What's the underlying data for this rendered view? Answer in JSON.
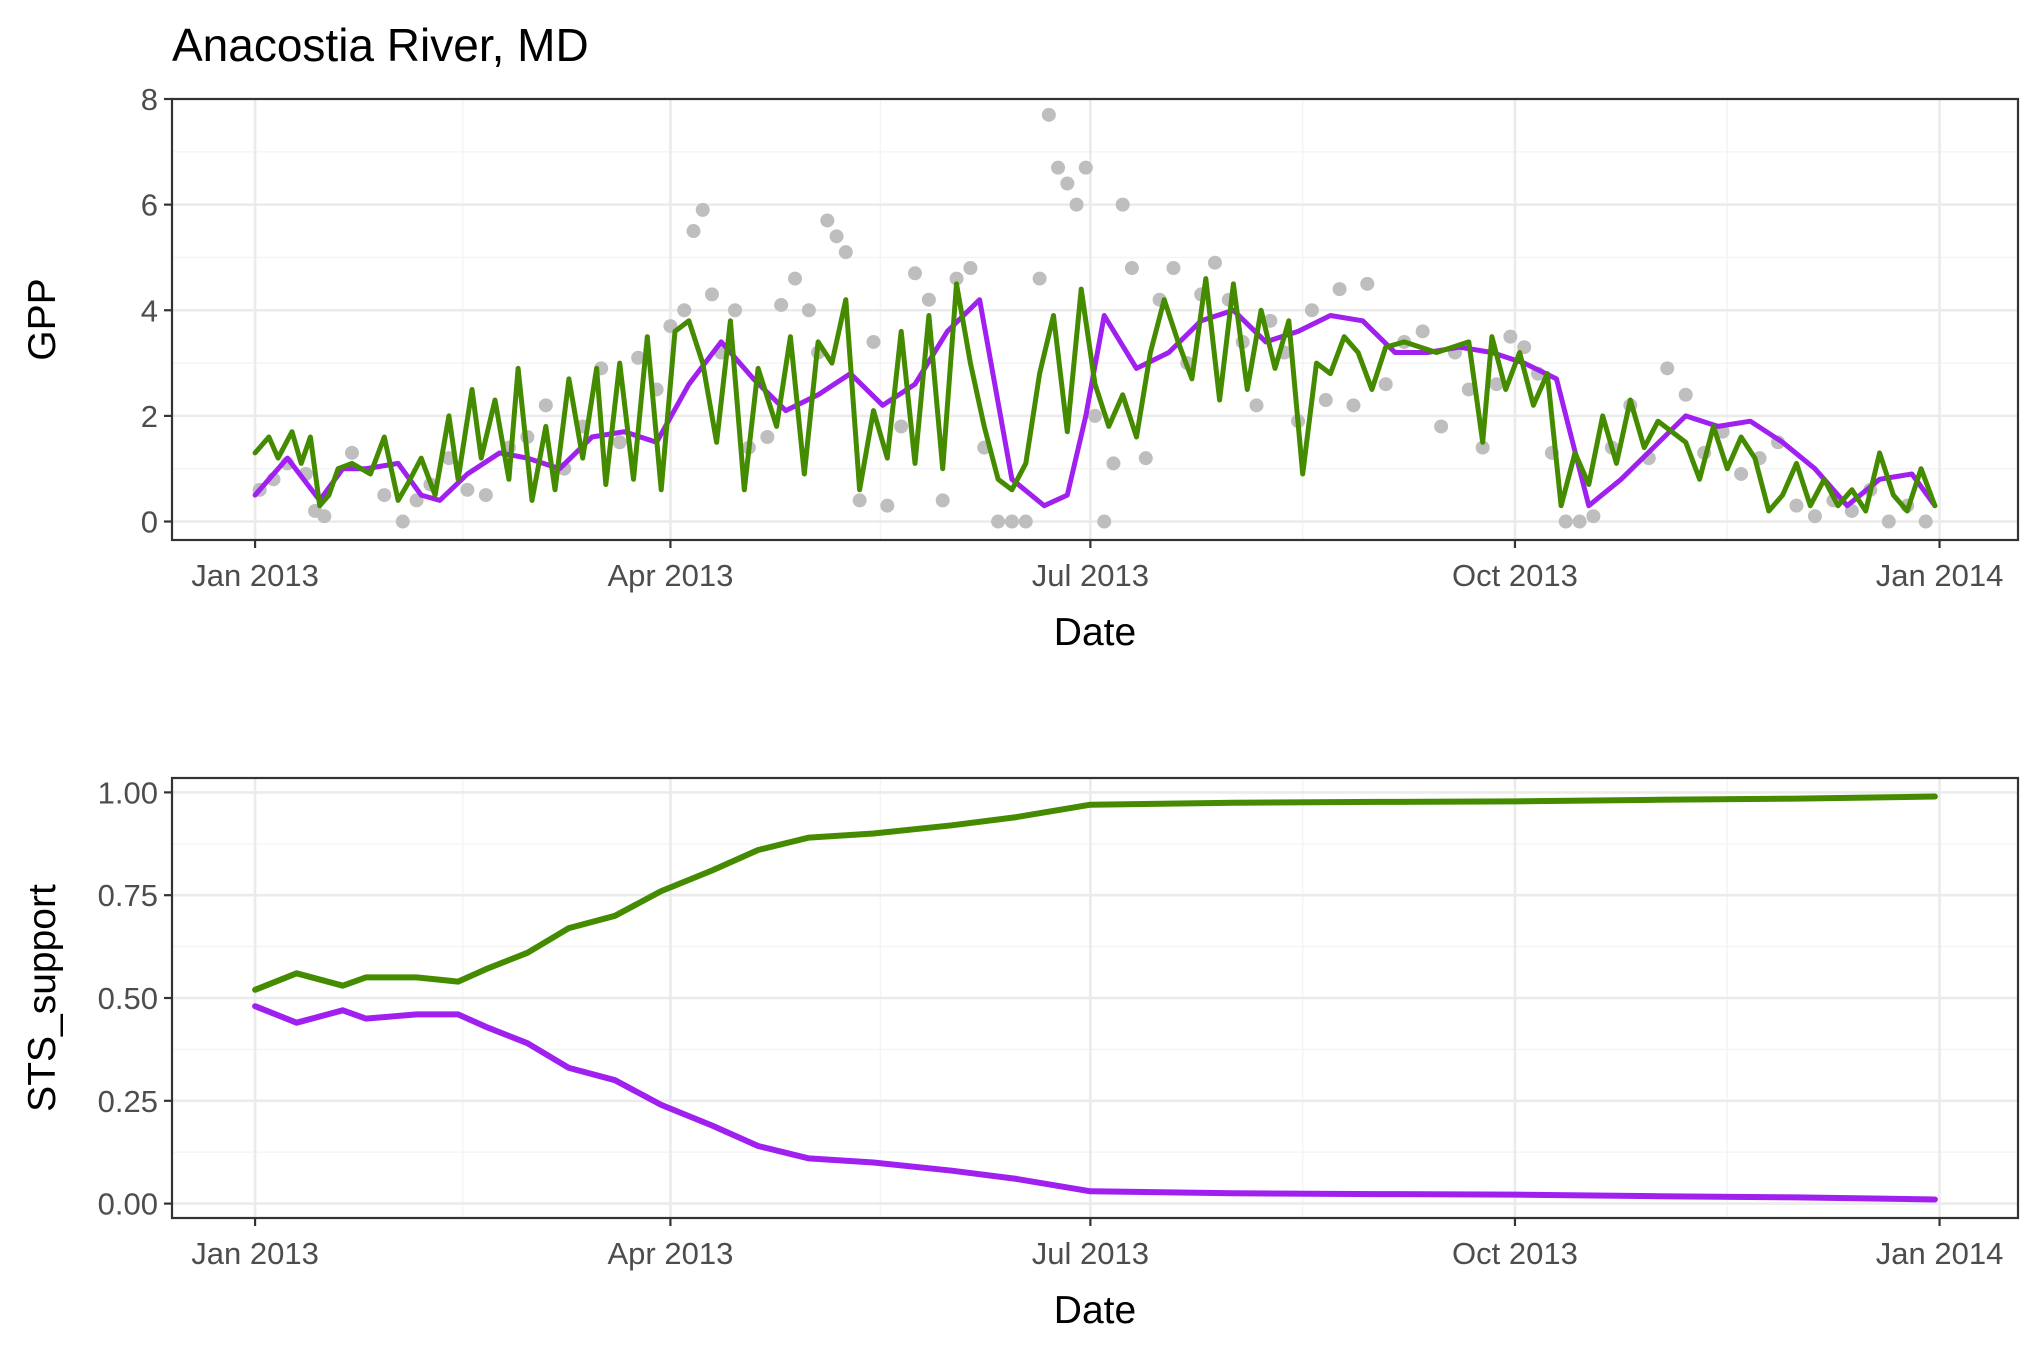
{
  "title": "Anacostia River, MD",
  "colors": {
    "series_a": "#A020F0",
    "series_b": "#458B00",
    "observed": "#BEBEBE"
  },
  "chart_data": [
    {
      "type": "line",
      "panel": "top",
      "ylabel": "GPP",
      "xlabel": "Date",
      "xlim": [
        "2012-12-14",
        "2014-01-18"
      ],
      "ylim": [
        -0.35,
        8.0
      ],
      "y_ticks": [
        0,
        2,
        4,
        6,
        8
      ],
      "y_tick_labels": [
        "0",
        "2",
        "4",
        "6",
        "8"
      ],
      "x_ticks": [
        "2013-01-01",
        "2013-04-01",
        "2013-07-01",
        "2013-10-01",
        "2014-01-01"
      ],
      "x_tick_labels": [
        "Jan 2013",
        "Apr 2013",
        "Jul 2013",
        "Oct 2013",
        "Jan 2014"
      ],
      "grid": true,
      "legend": "none",
      "points": {
        "color": "#BEBEBE",
        "dates": [
          "2013-01-02",
          "2013-01-05",
          "2013-01-08",
          "2013-01-12",
          "2013-01-14",
          "2013-01-16",
          "2013-01-22",
          "2013-01-29",
          "2013-02-02",
          "2013-02-05",
          "2013-02-08",
          "2013-02-12",
          "2013-02-16",
          "2013-02-20",
          "2013-02-25",
          "2013-03-01",
          "2013-03-05",
          "2013-03-09",
          "2013-03-13",
          "2013-03-17",
          "2013-03-21",
          "2013-03-25",
          "2013-03-29",
          "2013-04-01",
          "2013-04-04",
          "2013-04-06",
          "2013-04-08",
          "2013-04-10",
          "2013-04-12",
          "2013-04-15",
          "2013-04-18",
          "2013-04-22",
          "2013-04-25",
          "2013-04-28",
          "2013-05-01",
          "2013-05-03",
          "2013-05-05",
          "2013-05-07",
          "2013-05-09",
          "2013-05-12",
          "2013-05-15",
          "2013-05-18",
          "2013-05-21",
          "2013-05-24",
          "2013-05-27",
          "2013-05-30",
          "2013-06-02",
          "2013-06-05",
          "2013-06-08",
          "2013-06-11",
          "2013-06-14",
          "2013-06-17",
          "2013-06-20",
          "2013-06-22",
          "2013-06-24",
          "2013-06-26",
          "2013-06-28",
          "2013-06-30",
          "2013-07-02",
          "2013-07-04",
          "2013-07-06",
          "2013-07-08",
          "2013-07-10",
          "2013-07-13",
          "2013-07-16",
          "2013-07-19",
          "2013-07-22",
          "2013-07-25",
          "2013-07-28",
          "2013-07-31",
          "2013-08-03",
          "2013-08-06",
          "2013-08-09",
          "2013-08-12",
          "2013-08-15",
          "2013-08-18",
          "2013-08-21",
          "2013-08-24",
          "2013-08-27",
          "2013-08-30",
          "2013-09-03",
          "2013-09-07",
          "2013-09-11",
          "2013-09-15",
          "2013-09-18",
          "2013-09-21",
          "2013-09-24",
          "2013-09-27",
          "2013-09-30",
          "2013-10-03",
          "2013-10-06",
          "2013-10-09",
          "2013-10-12",
          "2013-10-15",
          "2013-10-18",
          "2013-10-22",
          "2013-10-26",
          "2013-10-30",
          "2013-11-03",
          "2013-11-07",
          "2013-11-11",
          "2013-11-15",
          "2013-11-19",
          "2013-11-23",
          "2013-11-27",
          "2013-12-01",
          "2013-12-05",
          "2013-12-09",
          "2013-12-13",
          "2013-12-17",
          "2013-12-21",
          "2013-12-25",
          "2013-12-29"
        ],
        "values": [
          0.6,
          0.8,
          1.1,
          0.9,
          0.2,
          0.1,
          1.3,
          0.5,
          0.0,
          0.4,
          0.7,
          1.2,
          0.6,
          0.5,
          1.4,
          1.6,
          2.2,
          1.0,
          1.8,
          2.9,
          1.5,
          3.1,
          2.5,
          3.7,
          4.0,
          5.5,
          5.9,
          4.3,
          3.2,
          4.0,
          1.4,
          1.6,
          4.1,
          4.6,
          4.0,
          3.2,
          5.7,
          5.4,
          5.1,
          0.4,
          3.4,
          0.3,
          1.8,
          4.7,
          4.2,
          0.4,
          4.6,
          4.8,
          1.4,
          0.0,
          0.0,
          0.0,
          4.6,
          7.7,
          6.7,
          6.4,
          6.0,
          6.7,
          2.0,
          0.0,
          1.1,
          6.0,
          4.8,
          1.2,
          4.2,
          4.8,
          3.0,
          4.3,
          4.9,
          4.2,
          3.4,
          2.2,
          3.8,
          3.2,
          1.9,
          4.0,
          2.3,
          4.4,
          2.2,
          4.5,
          2.6,
          3.4,
          3.6,
          1.8,
          3.2,
          2.5,
          1.4,
          2.6,
          3.5,
          3.3,
          2.8,
          1.3,
          0.0,
          0.0,
          0.1,
          1.4,
          2.2,
          1.2,
          2.9,
          2.4,
          1.3,
          1.7,
          0.9,
          1.2,
          1.5,
          0.3,
          0.1,
          0.4,
          0.2,
          0.6,
          0.0,
          0.3,
          0.0
        ]
      },
      "series": [
        {
          "color": "#A020F0",
          "dates": [
            "2013-01-01",
            "2013-01-08",
            "2013-01-15",
            "2013-01-20",
            "2013-01-25",
            "2013-02-01",
            "2013-02-06",
            "2013-02-10",
            "2013-02-16",
            "2013-02-23",
            "2013-03-01",
            "2013-03-08",
            "2013-03-15",
            "2013-03-22",
            "2013-03-29",
            "2013-04-05",
            "2013-04-12",
            "2013-04-19",
            "2013-04-26",
            "2013-05-03",
            "2013-05-10",
            "2013-05-17",
            "2013-05-24",
            "2013-05-31",
            "2013-06-07",
            "2013-06-14",
            "2013-06-21",
            "2013-06-26",
            "2013-06-30",
            "2013-07-04",
            "2013-07-11",
            "2013-07-18",
            "2013-07-25",
            "2013-08-01",
            "2013-08-08",
            "2013-08-15",
            "2013-08-22",
            "2013-08-29",
            "2013-09-05",
            "2013-09-12",
            "2013-09-19",
            "2013-09-26",
            "2013-10-03",
            "2013-10-10",
            "2013-10-17",
            "2013-10-24",
            "2013-10-31",
            "2013-11-07",
            "2013-11-14",
            "2013-11-21",
            "2013-11-28",
            "2013-12-05",
            "2013-12-12",
            "2013-12-19",
            "2013-12-26",
            "2013-12-31"
          ],
          "values": [
            0.5,
            1.2,
            0.4,
            1.0,
            1.0,
            1.1,
            0.5,
            0.4,
            0.9,
            1.3,
            1.2,
            1.0,
            1.6,
            1.7,
            1.5,
            2.6,
            3.4,
            2.7,
            2.1,
            2.4,
            2.8,
            2.2,
            2.6,
            3.6,
            4.2,
            0.8,
            0.3,
            0.5,
            2.0,
            3.9,
            2.9,
            3.2,
            3.8,
            4.0,
            3.4,
            3.6,
            3.9,
            3.8,
            3.2,
            3.2,
            3.3,
            3.2,
            3.0,
            2.7,
            0.3,
            0.8,
            1.4,
            2.0,
            1.8,
            1.9,
            1.5,
            1.0,
            0.3,
            0.8,
            0.9,
            0.3
          ]
        },
        {
          "color": "#458B00",
          "dates": [
            "2013-01-01",
            "2013-01-04",
            "2013-01-06",
            "2013-01-09",
            "2013-01-11",
            "2013-01-13",
            "2013-01-15",
            "2013-01-17",
            "2013-01-19",
            "2013-01-22",
            "2013-01-26",
            "2013-01-29",
            "2013-02-01",
            "2013-02-03",
            "2013-02-06",
            "2013-02-09",
            "2013-02-12",
            "2013-02-14",
            "2013-02-17",
            "2013-02-19",
            "2013-02-22",
            "2013-02-25",
            "2013-02-27",
            "2013-03-02",
            "2013-03-05",
            "2013-03-07",
            "2013-03-10",
            "2013-03-13",
            "2013-03-16",
            "2013-03-18",
            "2013-03-21",
            "2013-03-24",
            "2013-03-27",
            "2013-03-30",
            "2013-04-02",
            "2013-04-05",
            "2013-04-08",
            "2013-04-11",
            "2013-04-14",
            "2013-04-17",
            "2013-04-20",
            "2013-04-24",
            "2013-04-27",
            "2013-04-30",
            "2013-05-03",
            "2013-05-06",
            "2013-05-09",
            "2013-05-12",
            "2013-05-15",
            "2013-05-18",
            "2013-05-21",
            "2013-05-24",
            "2013-05-27",
            "2013-05-30",
            "2013-06-02",
            "2013-06-05",
            "2013-06-08",
            "2013-06-11",
            "2013-06-14",
            "2013-06-17",
            "2013-06-20",
            "2013-06-23",
            "2013-06-26",
            "2013-06-29",
            "2013-07-02",
            "2013-07-05",
            "2013-07-08",
            "2013-07-11",
            "2013-07-14",
            "2013-07-17",
            "2013-07-20",
            "2013-07-23",
            "2013-07-26",
            "2013-07-29",
            "2013-08-01",
            "2013-08-04",
            "2013-08-07",
            "2013-08-10",
            "2013-08-13",
            "2013-08-16",
            "2013-08-19",
            "2013-08-22",
            "2013-08-25",
            "2013-08-28",
            "2013-08-31",
            "2013-09-03",
            "2013-09-07",
            "2013-09-14",
            "2013-09-21",
            "2013-09-24",
            "2013-09-26",
            "2013-09-29",
            "2013-10-02",
            "2013-10-05",
            "2013-10-08",
            "2013-10-11",
            "2013-10-14",
            "2013-10-17",
            "2013-10-20",
            "2013-10-23",
            "2013-10-26",
            "2013-10-29",
            "2013-11-01",
            "2013-11-04",
            "2013-11-07",
            "2013-11-10",
            "2013-11-13",
            "2013-11-16",
            "2013-11-19",
            "2013-11-22",
            "2013-11-25",
            "2013-11-28",
            "2013-12-01",
            "2013-12-04",
            "2013-12-07",
            "2013-12-10",
            "2013-12-13",
            "2013-12-16",
            "2013-12-19",
            "2013-12-22",
            "2013-12-25",
            "2013-12-28",
            "2013-12-31"
          ],
          "values": [
            1.3,
            1.6,
            1.2,
            1.7,
            1.1,
            1.6,
            0.3,
            0.5,
            1.0,
            1.1,
            0.9,
            1.6,
            0.4,
            0.7,
            1.2,
            0.5,
            2.0,
            0.8,
            2.5,
            1.2,
            2.3,
            0.8,
            2.9,
            0.4,
            1.8,
            0.6,
            2.7,
            1.2,
            2.9,
            0.7,
            3.0,
            0.8,
            3.5,
            0.6,
            3.6,
            3.8,
            3.0,
            1.5,
            3.8,
            0.6,
            2.9,
            1.8,
            3.5,
            0.9,
            3.4,
            3.0,
            4.2,
            0.6,
            2.1,
            1.2,
            3.6,
            1.1,
            3.9,
            1.0,
            4.5,
            3.0,
            1.8,
            0.8,
            0.6,
            1.1,
            2.8,
            3.9,
            1.7,
            4.4,
            2.6,
            1.8,
            2.4,
            1.6,
            3.2,
            4.2,
            3.4,
            2.7,
            4.6,
            2.3,
            4.5,
            2.5,
            4.0,
            2.9,
            3.8,
            0.9,
            3.0,
            2.8,
            3.5,
            3.2,
            2.5,
            3.3,
            3.4,
            3.2,
            3.4,
            1.5,
            3.5,
            2.5,
            3.2,
            2.2,
            2.8,
            0.3,
            1.3,
            0.7,
            2.0,
            1.1,
            2.3,
            1.4,
            1.9,
            1.7,
            1.5,
            0.8,
            1.8,
            1.0,
            1.6,
            1.2,
            0.2,
            0.5,
            1.1,
            0.3,
            0.8,
            0.3,
            0.6,
            0.2,
            1.3,
            0.5,
            0.2,
            1.0,
            0.3
          ]
        }
      ]
    },
    {
      "type": "line",
      "panel": "bottom",
      "ylabel": "STS_support",
      "xlabel": "Date",
      "xlim": [
        "2012-12-14",
        "2014-01-18"
      ],
      "ylim": [
        -0.035,
        1.035
      ],
      "y_ticks": [
        0.0,
        0.25,
        0.5,
        0.75,
        1.0
      ],
      "y_tick_labels": [
        "0.00",
        "0.25",
        "0.50",
        "0.75",
        "1.00"
      ],
      "x_ticks": [
        "2013-01-01",
        "2013-04-01",
        "2013-07-01",
        "2013-10-01",
        "2014-01-01"
      ],
      "x_tick_labels": [
        "Jan 2013",
        "Apr 2013",
        "Jul 2013",
        "Oct 2013",
        "Jan 2014"
      ],
      "grid": true,
      "legend": "none",
      "series": [
        {
          "color": "#458B00",
          "dates": [
            "2013-01-01",
            "2013-01-10",
            "2013-01-20",
            "2013-01-25",
            "2013-02-05",
            "2013-02-14",
            "2013-02-20",
            "2013-03-01",
            "2013-03-10",
            "2013-03-20",
            "2013-03-30",
            "2013-04-10",
            "2013-04-20",
            "2013-05-01",
            "2013-05-15",
            "2013-06-01",
            "2013-06-15",
            "2013-07-01",
            "2013-08-01",
            "2013-09-01",
            "2013-10-01",
            "2013-11-01",
            "2013-12-01",
            "2013-12-31"
          ],
          "values": [
            0.52,
            0.56,
            0.53,
            0.55,
            0.55,
            0.54,
            0.57,
            0.61,
            0.67,
            0.7,
            0.76,
            0.81,
            0.86,
            0.89,
            0.9,
            0.92,
            0.94,
            0.97,
            0.975,
            0.977,
            0.978,
            0.982,
            0.985,
            0.99
          ]
        },
        {
          "color": "#A020F0",
          "dates": [
            "2013-01-01",
            "2013-01-10",
            "2013-01-20",
            "2013-01-25",
            "2013-02-05",
            "2013-02-14",
            "2013-02-20",
            "2013-03-01",
            "2013-03-10",
            "2013-03-20",
            "2013-03-30",
            "2013-04-10",
            "2013-04-20",
            "2013-05-01",
            "2013-05-15",
            "2013-06-01",
            "2013-06-15",
            "2013-07-01",
            "2013-08-01",
            "2013-09-01",
            "2013-10-01",
            "2013-11-01",
            "2013-12-01",
            "2013-12-31"
          ],
          "values": [
            0.48,
            0.44,
            0.47,
            0.45,
            0.46,
            0.46,
            0.43,
            0.39,
            0.33,
            0.3,
            0.24,
            0.19,
            0.14,
            0.11,
            0.1,
            0.08,
            0.06,
            0.03,
            0.025,
            0.023,
            0.022,
            0.018,
            0.015,
            0.01
          ]
        }
      ]
    }
  ]
}
